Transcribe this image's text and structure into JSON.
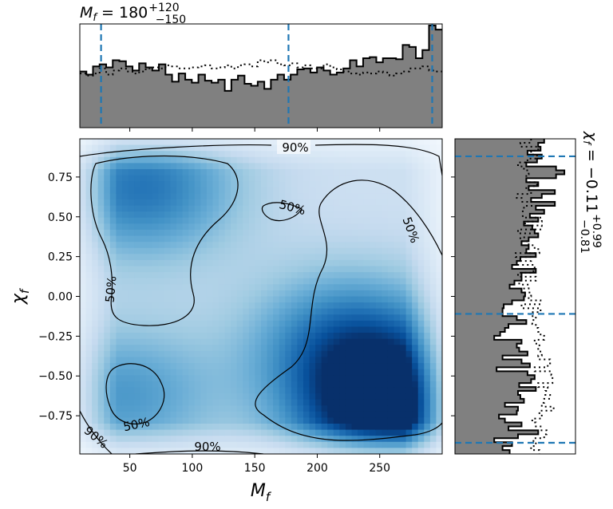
{
  "chart_data": [
    {
      "panel": "top-marginal",
      "type": "histogram",
      "title_main": "M",
      "title_sub": "f",
      "title_value": " = 180",
      "title_up": "+120",
      "title_down": "−150",
      "xlim": [
        10,
        300
      ],
      "quantile_lines": [
        27,
        177,
        292
      ],
      "series": [
        {
          "style": "filled-solid",
          "values": [
            0.55,
            0.52,
            0.6,
            0.62,
            0.59,
            0.66,
            0.65,
            0.6,
            0.56,
            0.63,
            0.59,
            0.56,
            0.62,
            0.52,
            0.45,
            0.53,
            0.47,
            0.44,
            0.52,
            0.46,
            0.44,
            0.47,
            0.36,
            0.47,
            0.51,
            0.43,
            0.41,
            0.45,
            0.38,
            0.47,
            0.52,
            0.47,
            0.52,
            0.57,
            0.58,
            0.54,
            0.59,
            0.56,
            0.52,
            0.54,
            0.58,
            0.66,
            0.6,
            0.68,
            0.69,
            0.64,
            0.68,
            0.68,
            0.67,
            0.81,
            0.79,
            0.68,
            0.76,
            1.0,
            0.96
          ]
        },
        {
          "style": "dotted",
          "values": [
            0.53,
            0.51,
            0.53,
            0.58,
            0.52,
            0.56,
            0.58,
            0.55,
            0.53,
            0.55,
            0.58,
            0.59,
            0.58,
            0.61,
            0.6,
            0.58,
            0.58,
            0.59,
            0.6,
            0.61,
            0.58,
            0.59,
            0.61,
            0.58,
            0.61,
            0.62,
            0.6,
            0.66,
            0.64,
            0.66,
            0.62,
            0.61,
            0.63,
            0.59,
            0.61,
            0.58,
            0.58,
            0.62,
            0.59,
            0.57,
            0.55,
            0.53,
            0.52,
            0.54,
            0.53,
            0.55,
            0.54,
            0.51,
            0.53,
            0.55,
            0.58,
            0.58,
            0.6,
            0.56,
            0.55
          ]
        }
      ]
    },
    {
      "panel": "joint-density",
      "type": "heatmap",
      "xlabel_main": "M",
      "xlabel_sub": "f",
      "ylabel_main": "χ",
      "ylabel_sub": "f",
      "xlim": [
        10,
        300
      ],
      "ylim": [
        -0.99,
        0.99
      ],
      "xticks": [
        "50",
        "100",
        "150",
        "200",
        "250"
      ],
      "xtick_values": [
        50,
        100,
        150,
        200,
        250
      ],
      "yticks": [
        "0.75",
        "0.50",
        "0.25",
        "0.00",
        "−0.25",
        "−0.50",
        "−0.75"
      ],
      "ytick_values": [
        0.75,
        0.5,
        0.25,
        0.0,
        -0.25,
        -0.5,
        -0.75
      ],
      "colormap": "Blues",
      "density_peaks": [
        {
          "x": 262,
          "y": -0.74,
          "weight": 1.0
        },
        {
          "x": 225,
          "y": -0.28,
          "weight": 0.55
        },
        {
          "x": 60,
          "y": 0.68,
          "weight": 0.55
        },
        {
          "x": 45,
          "y": -0.62,
          "weight": 0.4
        }
      ],
      "contour_labels": [
        "90%",
        "50%",
        "50%",
        "50%",
        "50%",
        "90%",
        "90%"
      ]
    },
    {
      "panel": "right-marginal",
      "type": "histogram",
      "orientation": "horizontal",
      "title_main": "χ",
      "title_sub": "f",
      "title_value": " = −0.11",
      "title_up": "+0.99",
      "title_down": "−0.81",
      "ylim": [
        -0.99,
        0.99
      ],
      "quantile_lines": [
        0.88,
        -0.11,
        -0.92
      ],
      "series": [
        {
          "style": "filled-solid",
          "values": [
            0.75,
            0.7,
            0.72,
            0.61,
            0.73,
            0.69,
            0.6,
            0.85,
            0.92,
            0.85,
            0.6,
            0.7,
            0.62,
            0.84,
            0.73,
            0.64,
            0.84,
            0.68,
            0.75,
            0.63,
            0.7,
            0.58,
            0.65,
            0.67,
            0.7,
            0.62,
            0.56,
            0.62,
            0.6,
            0.68,
            0.55,
            0.52,
            0.48,
            0.68,
            0.56,
            0.56,
            0.5,
            0.46,
            0.56,
            0.59,
            0.58,
            0.48,
            0.41,
            0.4,
            0.4,
            0.52,
            0.6,
            0.45,
            0.42,
            0.38,
            0.33,
            0.56,
            0.52,
            0.54,
            0.61,
            0.4,
            0.56,
            0.63,
            0.35,
            0.61,
            0.67,
            0.64,
            0.54,
            0.68,
            0.53,
            0.55,
            0.58,
            0.42,
            0.53,
            0.52,
            0.37,
            0.42,
            0.56,
            0.45,
            0.7,
            0.53,
            0.33,
            0.48,
            0.4,
            0.46
          ]
        },
        {
          "style": "dotted",
          "values": [
            0.64,
            0.55,
            0.7,
            0.64,
            0.69,
            0.61,
            0.53,
            0.58,
            0.62,
            0.6,
            0.6,
            0.69,
            0.6,
            0.64,
            0.52,
            0.56,
            0.73,
            0.58,
            0.57,
            0.57,
            0.73,
            0.59,
            0.73,
            0.53,
            0.63,
            0.55,
            0.62,
            0.67,
            0.71,
            0.51,
            0.64,
            0.52,
            0.67,
            0.66,
            0.53,
            0.68,
            0.54,
            0.62,
            0.56,
            0.64,
            0.62,
            0.72,
            0.56,
            0.72,
            0.63,
            0.68,
            0.65,
            0.68,
            0.7,
            0.72,
            0.75,
            0.67,
            0.71,
            0.7,
            0.73,
            0.7,
            0.8,
            0.78,
            0.67,
            0.81,
            0.82,
            0.82,
            0.7,
            0.78,
            0.76,
            0.8,
            0.75,
            0.73,
            0.83,
            0.71,
            0.73,
            0.65,
            0.68,
            0.72,
            0.77,
            0.75,
            0.66,
            0.68,
            0.64,
            0.71
          ]
        }
      ]
    }
  ],
  "colors": {
    "hist_fill": "#808080",
    "quantile_line": "#1f77b4",
    "contour": "#000000"
  }
}
